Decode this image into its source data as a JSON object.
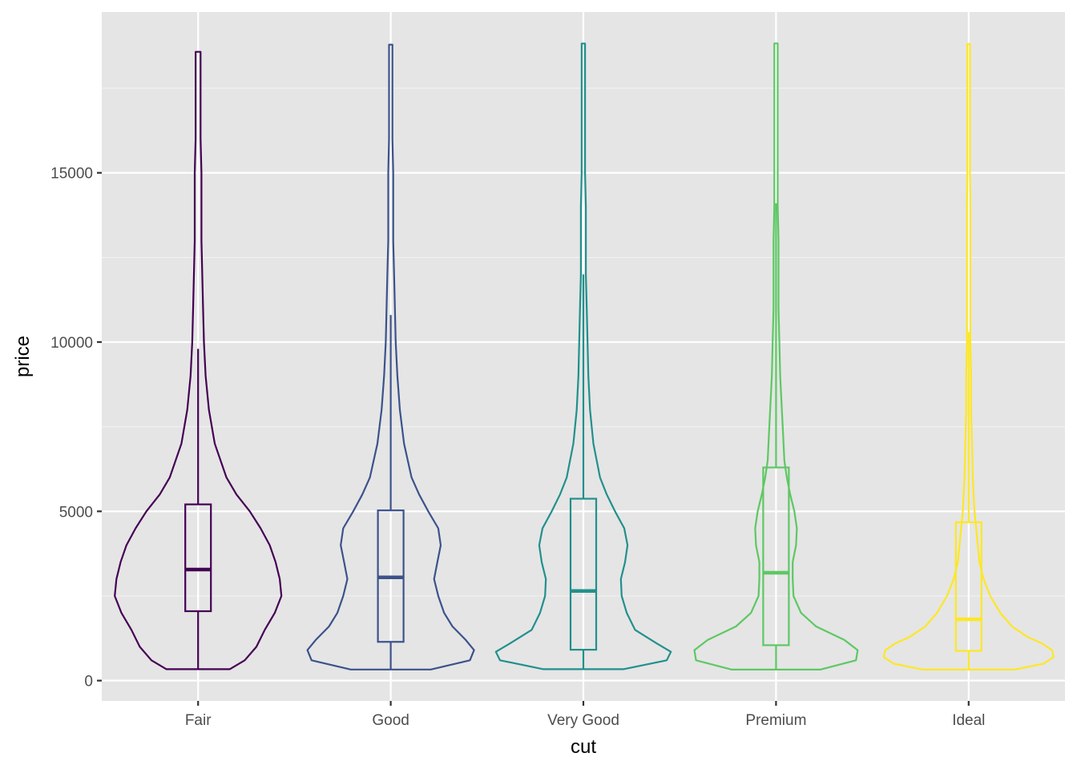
{
  "chart_data": {
    "type": "violin",
    "overlay": "boxplot",
    "xlabel": "cut",
    "ylabel": "price",
    "categories": [
      "Fair",
      "Good",
      "Very Good",
      "Premium",
      "Ideal"
    ],
    "colors": [
      "#440154",
      "#3B528B",
      "#21908C",
      "#5DC863",
      "#FDE725"
    ],
    "ylim": [
      -600,
      19750
    ],
    "yticks": [
      0,
      5000,
      10000,
      15000
    ],
    "ytick_labels": [
      "0",
      "5000",
      "10000",
      "15000"
    ],
    "grid": true,
    "legend": "none",
    "background": "#E5E5E5",
    "series": [
      {
        "category": "Fair",
        "min": 337,
        "q1": 2050,
        "median": 3282,
        "q3": 5206,
        "max": 18574,
        "whisker_high": 9800,
        "density": [
          [
            337,
            0.38
          ],
          [
            600,
            0.56
          ],
          [
            1000,
            0.7
          ],
          [
            1500,
            0.8
          ],
          [
            2000,
            0.92
          ],
          [
            2500,
            1.0
          ],
          [
            3000,
            0.98
          ],
          [
            3500,
            0.93
          ],
          [
            4000,
            0.86
          ],
          [
            4500,
            0.75
          ],
          [
            5000,
            0.62
          ],
          [
            5500,
            0.46
          ],
          [
            6000,
            0.34
          ],
          [
            7000,
            0.2
          ],
          [
            8000,
            0.13
          ],
          [
            9000,
            0.09
          ],
          [
            10000,
            0.07
          ],
          [
            11000,
            0.06
          ],
          [
            12000,
            0.05
          ],
          [
            13000,
            0.04
          ],
          [
            14000,
            0.04
          ],
          [
            15000,
            0.04
          ],
          [
            16000,
            0.03
          ],
          [
            17000,
            0.03
          ],
          [
            18000,
            0.03
          ],
          [
            18574,
            0.03
          ]
        ]
      },
      {
        "category": "Good",
        "min": 327,
        "q1": 1145,
        "median": 3050,
        "q3": 5028,
        "max": 18788,
        "whisker_high": 10800,
        "density": [
          [
            327,
            0.48
          ],
          [
            600,
            0.95
          ],
          [
            900,
            1.0
          ],
          [
            1200,
            0.9
          ],
          [
            1600,
            0.74
          ],
          [
            2000,
            0.64
          ],
          [
            2500,
            0.57
          ],
          [
            3000,
            0.52
          ],
          [
            3500,
            0.56
          ],
          [
            4000,
            0.6
          ],
          [
            4500,
            0.57
          ],
          [
            5000,
            0.45
          ],
          [
            5500,
            0.34
          ],
          [
            6000,
            0.25
          ],
          [
            7000,
            0.16
          ],
          [
            8000,
            0.11
          ],
          [
            9000,
            0.08
          ],
          [
            10000,
            0.06
          ],
          [
            11000,
            0.05
          ],
          [
            12000,
            0.04
          ],
          [
            13000,
            0.03
          ],
          [
            14000,
            0.03
          ],
          [
            15000,
            0.03
          ],
          [
            16000,
            0.02
          ],
          [
            17000,
            0.02
          ],
          [
            18000,
            0.02
          ],
          [
            18788,
            0.02
          ]
        ]
      },
      {
        "category": "Very Good",
        "min": 336,
        "q1": 912,
        "median": 2648,
        "q3": 5373,
        "max": 18818,
        "whisker_high": 12000,
        "density": [
          [
            336,
            0.48
          ],
          [
            600,
            1.0
          ],
          [
            850,
            1.05
          ],
          [
            1100,
            0.88
          ],
          [
            1500,
            0.62
          ],
          [
            2000,
            0.52
          ],
          [
            2500,
            0.46
          ],
          [
            3000,
            0.45
          ],
          [
            3500,
            0.5
          ],
          [
            4000,
            0.53
          ],
          [
            4500,
            0.49
          ],
          [
            5000,
            0.38
          ],
          [
            5500,
            0.28
          ],
          [
            6000,
            0.2
          ],
          [
            7000,
            0.12
          ],
          [
            8000,
            0.08
          ],
          [
            9000,
            0.06
          ],
          [
            10000,
            0.05
          ],
          [
            11000,
            0.04
          ],
          [
            12000,
            0.03
          ],
          [
            13000,
            0.03
          ],
          [
            14000,
            0.03
          ],
          [
            15000,
            0.02
          ],
          [
            16000,
            0.02
          ],
          [
            17000,
            0.02
          ],
          [
            18000,
            0.02
          ],
          [
            18818,
            0.02
          ]
        ]
      },
      {
        "category": "Premium",
        "min": 326,
        "q1": 1046,
        "median": 3185,
        "q3": 6296,
        "max": 18823,
        "whisker_high": 14100,
        "density": [
          [
            326,
            0.53
          ],
          [
            600,
            0.96
          ],
          [
            900,
            0.98
          ],
          [
            1200,
            0.82
          ],
          [
            1600,
            0.48
          ],
          [
            2000,
            0.3
          ],
          [
            2500,
            0.21
          ],
          [
            3000,
            0.2
          ],
          [
            3500,
            0.2
          ],
          [
            4000,
            0.24
          ],
          [
            4500,
            0.25
          ],
          [
            5000,
            0.22
          ],
          [
            5500,
            0.17
          ],
          [
            6000,
            0.13
          ],
          [
            6500,
            0.1
          ],
          [
            7000,
            0.09
          ],
          [
            8000,
            0.07
          ],
          [
            9000,
            0.05
          ],
          [
            10000,
            0.04
          ],
          [
            11000,
            0.03
          ],
          [
            12000,
            0.03
          ],
          [
            13000,
            0.03
          ],
          [
            14000,
            0.02
          ],
          [
            15000,
            0.02
          ],
          [
            16000,
            0.02
          ],
          [
            17000,
            0.02
          ],
          [
            18000,
            0.02
          ],
          [
            18823,
            0.02
          ]
        ]
      },
      {
        "category": "Ideal",
        "min": 326,
        "q1": 878,
        "median": 1810,
        "q3": 4678,
        "max": 18806,
        "whisker_high": 10300,
        "density": [
          [
            326,
            0.55
          ],
          [
            500,
            0.9
          ],
          [
            700,
            1.02
          ],
          [
            900,
            1.0
          ],
          [
            1100,
            0.88
          ],
          [
            1300,
            0.7
          ],
          [
            1600,
            0.52
          ],
          [
            2000,
            0.38
          ],
          [
            2500,
            0.26
          ],
          [
            3000,
            0.18
          ],
          [
            3500,
            0.13
          ],
          [
            4000,
            0.11
          ],
          [
            4500,
            0.09
          ],
          [
            5000,
            0.07
          ],
          [
            5500,
            0.06
          ],
          [
            6000,
            0.05
          ],
          [
            7000,
            0.04
          ],
          [
            8000,
            0.03
          ],
          [
            9000,
            0.03
          ],
          [
            10000,
            0.02
          ],
          [
            11000,
            0.02
          ],
          [
            12000,
            0.02
          ],
          [
            13000,
            0.02
          ],
          [
            14000,
            0.02
          ],
          [
            15000,
            0.015
          ],
          [
            16000,
            0.015
          ],
          [
            17000,
            0.015
          ],
          [
            18000,
            0.015
          ],
          [
            18806,
            0.015
          ]
        ]
      }
    ]
  }
}
